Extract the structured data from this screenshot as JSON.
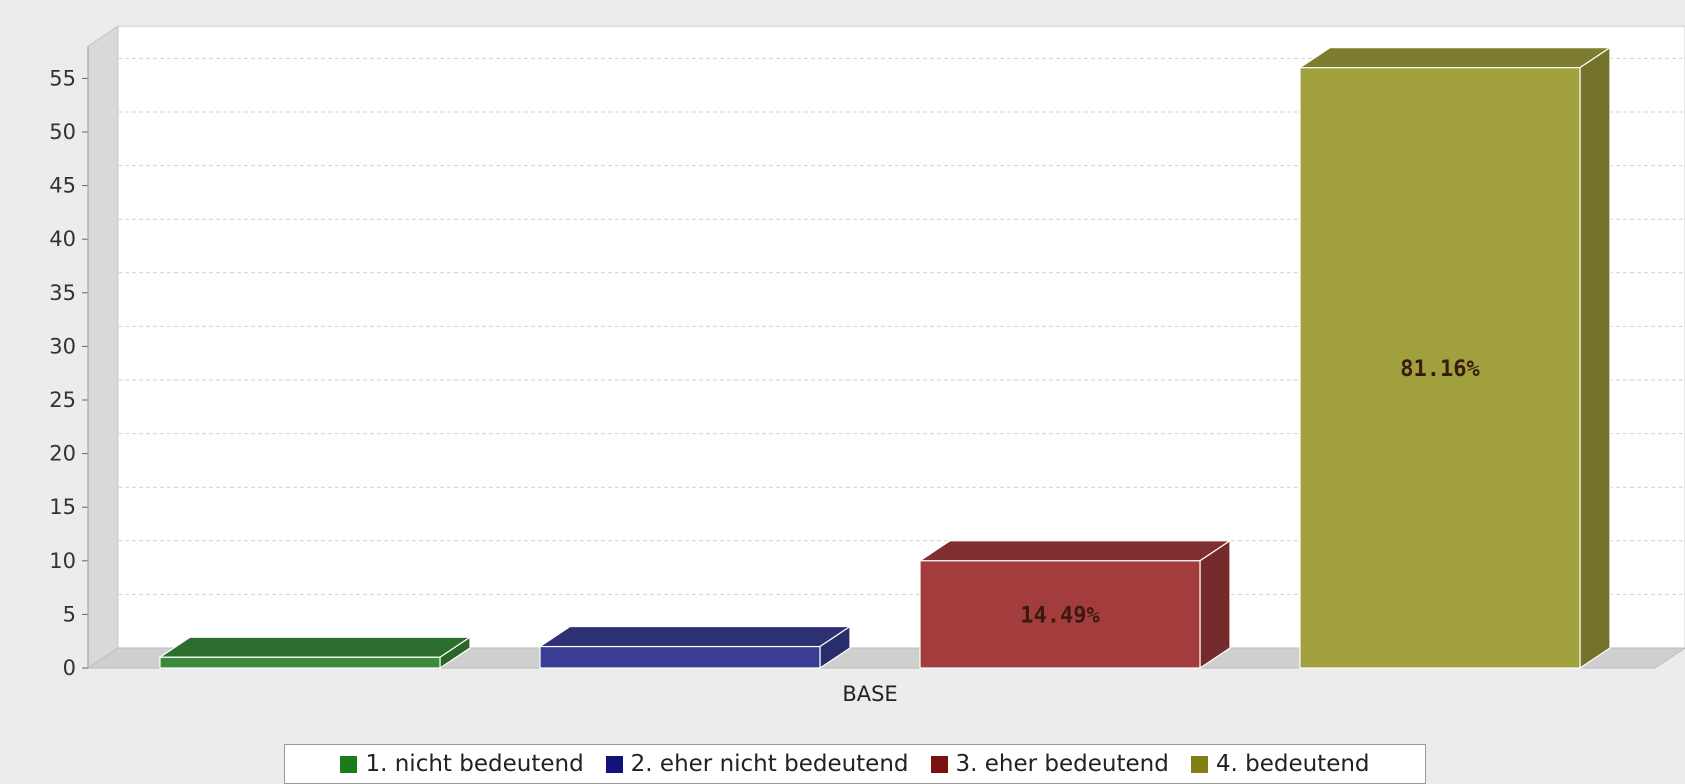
{
  "chart_data": {
    "type": "bar",
    "style": "3d",
    "title": "",
    "xlabel": "",
    "ylabel": "",
    "categories": [
      "BASE"
    ],
    "ylim": [
      0,
      58
    ],
    "yticks": [
      0,
      5,
      10,
      15,
      20,
      25,
      30,
      35,
      40,
      45,
      50,
      55
    ],
    "grid": true,
    "legend_position": "bottom",
    "series": [
      {
        "name": "1. nicht bedeutend",
        "values": [
          1
        ],
        "color": "#3a8c3a",
        "label": ""
      },
      {
        "name": "2. eher nicht bedeutend",
        "values": [
          2
        ],
        "color": "#3a3f95",
        "label": ""
      },
      {
        "name": "3. eher bedeutend",
        "values": [
          10
        ],
        "color": "#a33c3c",
        "label": "14.49%"
      },
      {
        "name": "4. bedeutend",
        "values": [
          56
        ],
        "color": "#a0a03c",
        "label": "81.16%"
      }
    ]
  },
  "legend_colors": [
    "#1a7d1a",
    "#12127a",
    "#7a1212",
    "#7f7f14"
  ]
}
